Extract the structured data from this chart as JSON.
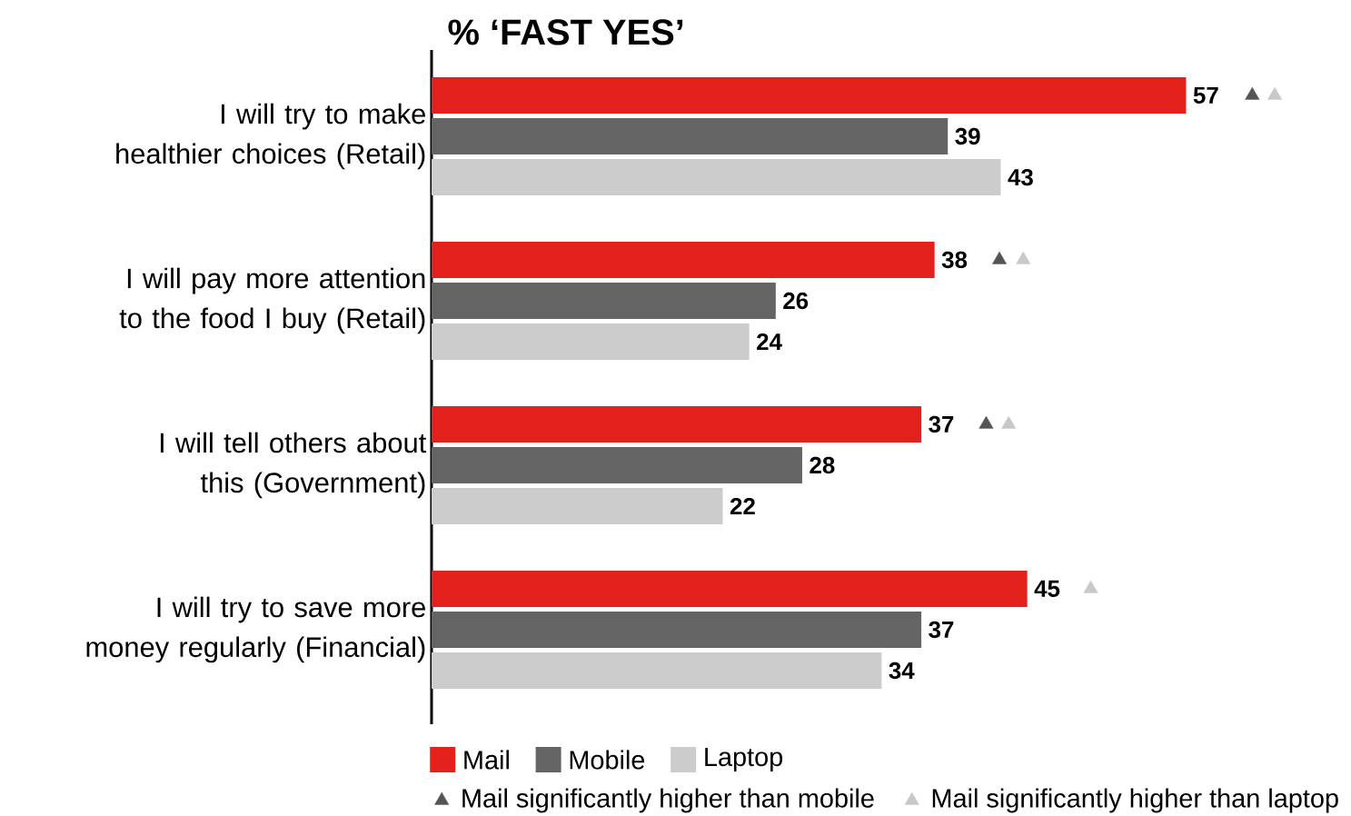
{
  "chart_data": {
    "type": "bar",
    "orientation": "horizontal",
    "title": "% ‘FAST YES’",
    "categories": [
      "I will try to make healthier choices (Retail)",
      "I will pay more attention to the food I buy (Retail)",
      "I will tell others about this (Government)",
      "I will try to save more money regularly (Financial)"
    ],
    "series": [
      {
        "name": "Mail",
        "color": "#e2211c",
        "values": [
          57,
          38,
          37,
          45
        ],
        "value_labels": [
          "57",
          "38",
          "37",
          "45"
        ]
      },
      {
        "name": "Mobile",
        "color": "#646464",
        "values": [
          39,
          26,
          28,
          37
        ],
        "value_labels": [
          "39",
          "26",
          "28",
          "37"
        ]
      },
      {
        "name": "Laptop",
        "color": "#cccccc",
        "values": [
          43,
          24,
          22,
          34
        ],
        "value_labels": [
          "43",
          "24",
          "22",
          "34"
        ]
      },
      {
        "name": "Mail significantly higher than mobile",
        "type": "scatter",
        "marker": "triangle",
        "color": "#555555",
        "values": [
          62,
          42.9,
          41.9,
          null
        ]
      },
      {
        "name": "Mail significantly higher than laptop",
        "type": "scatter",
        "marker": "triangle",
        "color": "#c8c8c8",
        "values": [
          63.7,
          44.7,
          43.6,
          49.8
        ]
      }
    ],
    "legend": "bottom"
  }
}
